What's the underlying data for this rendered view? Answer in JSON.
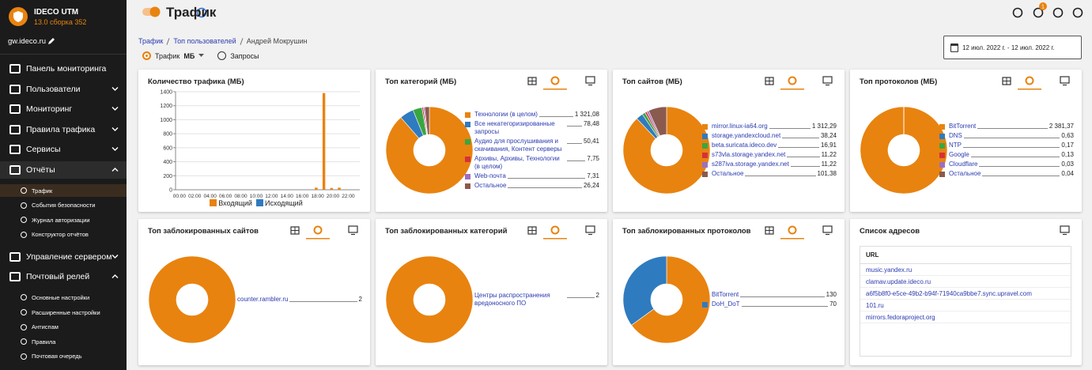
{
  "sidebar": {
    "brand": "IDECO UTM",
    "version": "13.0 сборка 352",
    "host": "gw.ideco.ru",
    "menu": [
      {
        "label": "Панель мониторинга"
      },
      {
        "label": "Пользователи",
        "expanded": false
      },
      {
        "label": "Мониторинг",
        "expanded": false
      },
      {
        "label": "Правила трафика",
        "expanded": false
      },
      {
        "label": "Сервисы",
        "expanded": false
      },
      {
        "label": "Отчёты",
        "expanded": true,
        "active": true,
        "items": [
          {
            "label": "Трафик",
            "active": true
          },
          {
            "label": "События безопасности"
          },
          {
            "label": "Журнал авторизации"
          },
          {
            "label": "Конструктор отчётов"
          }
        ]
      },
      {
        "label": "Управление сервером",
        "expanded": false
      },
      {
        "label": "Почтовый релей",
        "expanded": true,
        "items": [
          {
            "label": "Основные настройки"
          },
          {
            "label": "Расширенные настройки"
          },
          {
            "label": "Антиспам"
          },
          {
            "label": "Правила"
          },
          {
            "label": "Почтовая очередь"
          }
        ]
      }
    ]
  },
  "header": {
    "title": "Трафик",
    "notifications": 1
  },
  "breadcrumbs": [
    "Трафик",
    "Топ пользователей",
    "Андрей Мокрушин"
  ],
  "filters": {
    "mode": "Трафик",
    "unit": "МБ",
    "alt_mode": "Запросы"
  },
  "date_range": "12 июл. 2022 г. - 12 июл. 2022 г.",
  "cards": [
    {
      "type": "bar",
      "title": "Количество трафика (МБ)",
      "categories": [
        "00:00",
        null,
        "02:00",
        null,
        "04:00",
        null,
        "06:00",
        null,
        "08:00",
        null,
        "10:00",
        null,
        "12:00",
        null,
        "14:00",
        null,
        "16:00",
        null,
        "18:00",
        null,
        "20:00",
        null,
        "22:00",
        null
      ],
      "series": [
        {
          "name": "Входящий",
          "color": "#e8830f",
          "values": [
            0,
            0,
            0,
            0,
            0,
            0,
            0,
            0,
            0,
            0,
            0,
            0,
            0,
            0,
            0,
            0,
            0,
            0,
            30,
            1380,
            25,
            30,
            0,
            0
          ]
        },
        {
          "name": "Исходящий",
          "color": "#2f7bbf",
          "values": [
            0,
            0,
            0,
            0,
            0,
            0,
            0,
            0,
            0,
            0,
            0,
            0,
            0,
            0,
            0,
            0,
            0,
            0,
            0,
            0,
            0,
            0,
            0,
            0
          ]
        }
      ],
      "ylim": [
        0,
        1400
      ],
      "yticks": [
        0,
        200,
        400,
        600,
        800,
        1000,
        1200,
        1400
      ],
      "grid": true
    },
    {
      "type": "pie",
      "title": "Топ категорий (МБ)",
      "categories": [
        "Технологии (в целом)",
        "Все некатегоризированные запросы",
        "Аудио для прослушивания и скачивания, Контент серверы",
        "Архивы, Архивы, Технологии (в целом)",
        "Web-почта",
        "Остальное"
      ],
      "values": [
        1321.08,
        78.48,
        50.41,
        7.75,
        7.31,
        26.24
      ],
      "value_labels": [
        "1 321,08",
        "78,48",
        "50,41",
        "7,75",
        "7,31",
        "26,24"
      ],
      "colors": [
        "#e8830f",
        "#2f7bbf",
        "#3aa640",
        "#d6303a",
        "#9c6fc1",
        "#8b5a4e"
      ]
    },
    {
      "type": "pie",
      "title": "Топ сайтов (МБ)",
      "categories": [
        "mirror.linux-ia64.org",
        "storage.yandexcloud.net",
        "beta.suricata.ideco.dev",
        "s73vla.storage.yandex.net",
        "s287iva.storage.yandex.net",
        "Остальное"
      ],
      "values": [
        1312.29,
        38.24,
        16.91,
        11.22,
        11.22,
        101.38
      ],
      "value_labels": [
        "1 312,29",
        "38,24",
        "16,91",
        "11,22",
        "11,22",
        "101,38"
      ],
      "colors": [
        "#e8830f",
        "#2f7bbf",
        "#3aa640",
        "#d6303a",
        "#9c6fc1",
        "#8b5a4e"
      ]
    },
    {
      "type": "pie",
      "title": "Топ протоколов (МБ)",
      "categories": [
        "BitTorrent",
        "DNS",
        "NTP",
        "Google",
        "Cloudflare",
        "Остальное"
      ],
      "values": [
        2381.37,
        0.63,
        0.17,
        0.13,
        0.03,
        0.04
      ],
      "value_labels": [
        "2 381,37",
        "0,63",
        "0,17",
        "0,13",
        "0,03",
        "0,04"
      ],
      "colors": [
        "#e8830f",
        "#2f7bbf",
        "#3aa640",
        "#d6303a",
        "#9c6fc1",
        "#8b5a4e"
      ]
    },
    {
      "type": "pie",
      "title": "Топ заблокированных сайтов",
      "categories": [
        "counter.rambler.ru"
      ],
      "values": [
        2
      ],
      "colors": [
        "#e8830f"
      ]
    },
    {
      "type": "pie",
      "title": "Топ заблокированных категорий",
      "categories": [
        "Центры распространения вредоносного ПО"
      ],
      "values": [
        2
      ],
      "colors": [
        "#e8830f"
      ]
    },
    {
      "type": "pie",
      "title": "Топ заблокированных протоколов",
      "categories": [
        "BitTorrent",
        "DoH_DoT"
      ],
      "values": [
        130,
        70
      ],
      "colors": [
        "#e8830f",
        "#2f7bbf"
      ]
    },
    {
      "type": "table",
      "title": "Список адресов",
      "header": "URL",
      "rows": [
        "music.yandex.ru",
        "clamav.update.ideco.ru",
        "a6f5b8f0-e5ce-49b2-b94f-71940ca9bbe7.sync.upravel.com",
        "101.ru",
        "mirrors.fedoraproject.org"
      ]
    }
  ]
}
